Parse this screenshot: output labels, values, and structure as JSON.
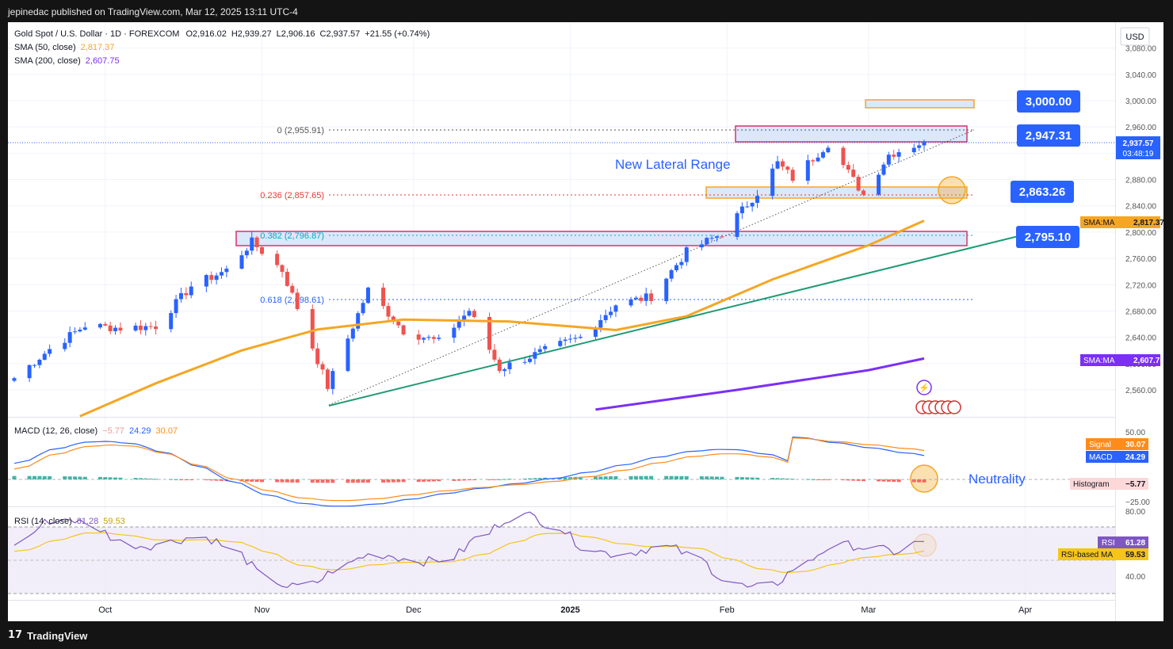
{
  "header": {
    "published_text": "jepinedac published on TradingView.com, Mar 12, 2025 13:11 UTC-4"
  },
  "legend": {
    "symbol": "Gold Spot / U.S. Dollar · 1D · FOREXCOM",
    "open": "O2,916.02",
    "high": "H2,939.27",
    "low": "L2,906.16",
    "close": "C2,937.57",
    "change": "+21.55 (+0.74%)",
    "sma50_label": "SMA (50, close)",
    "sma50_value": "2,817.37",
    "sma200_label": "SMA (200, close)",
    "sma200_value": "2,607.75"
  },
  "currency": "USD",
  "price_axis": {
    "ticks": [
      "3,080.00",
      "3,040.00",
      "3,000.00",
      "2,960.00",
      "2,920.00",
      "2,880.00",
      "2,840.00",
      "2,800.00",
      "2,760.00",
      "2,720.00",
      "2,680.00",
      "2,640.00",
      "2,600.00",
      "2,560.00"
    ],
    "current_price": "2,937.57",
    "countdown": "03:48:19",
    "sma50_tag_label": "SMA:MA",
    "sma50_tag_value": "2,817.37",
    "sma200_tag_label": "SMA:MA",
    "sma200_tag_value": "2,607.75"
  },
  "annotations": {
    "level_3000": "3,000.00",
    "level_2947": "2,947.31",
    "level_2863": "2,863.26",
    "level_2795": "2,795.10",
    "range_text": "New Lateral Range",
    "fib_0": "0 (2,955.91)",
    "fib_236": "0.236 (2,857.65)",
    "fib_382": "0.382 (2,796.87)",
    "fib_618": "0.618 (2,698.61)",
    "neutrality": "Neutrality"
  },
  "macd": {
    "label": "MACD (12, 26, close)",
    "hist": "−5.77",
    "macd_value": "24.29",
    "signal_value": "30.07",
    "axis_ticks": [
      "50.00",
      "−25.00"
    ],
    "signal_tag_label": "Signal",
    "signal_tag_value": "30.07",
    "macd_tag_label": "MACD",
    "macd_tag_value": "24.29",
    "hist_tag_label": "Histogram",
    "hist_tag_value": "−5.77"
  },
  "rsi": {
    "label": "RSI (14, close)",
    "value": "61.28",
    "ma_value": "59.53",
    "axis_ticks": [
      "80.00",
      "40.00"
    ],
    "rsi_tag_label": "RSI",
    "rsi_tag_value": "61.28",
    "ma_tag_label": "RSI-based MA",
    "ma_tag_value": "59.53"
  },
  "time_axis": {
    "labels": [
      "Oct",
      "Nov",
      "Dec",
      "2025",
      "Feb",
      "Mar",
      "Apr"
    ]
  },
  "footer": {
    "brand": "TradingView"
  },
  "colors": {
    "up": "#2962ff",
    "down": "#ef5350",
    "sma50": "#f5a623",
    "sma200": "#7b2ff7",
    "trendline": "#1e9b74",
    "macd_line": "#2962ff",
    "signal_line": "#ff8c1a",
    "rsi_line": "#7e57c2",
    "rsi_ma": "#f5c518",
    "badge": "#2962ff"
  },
  "chart_data": {
    "type": "candlestick",
    "title": "Gold Spot / U.S. Dollar · 1D · FOREXCOM",
    "x_range": [
      "2024-09-13",
      "2025-03-12"
    ],
    "ylim": [
      2530,
      3090
    ],
    "close_path": [
      {
        "date": "2024-09-13",
        "close": 2578
      },
      {
        "date": "2024-09-20",
        "close": 2622
      },
      {
        "date": "2024-09-27",
        "close": 2658
      },
      {
        "date": "2024-10-04",
        "close": 2654
      },
      {
        "date": "2024-10-11",
        "close": 2657
      },
      {
        "date": "2024-10-18",
        "close": 2718
      },
      {
        "date": "2024-10-25",
        "close": 2742
      },
      {
        "date": "2024-10-30",
        "close": 2785
      },
      {
        "date": "2024-11-05",
        "close": 2742
      },
      {
        "date": "2024-11-08",
        "close": 2685
      },
      {
        "date": "2024-11-14",
        "close": 2565
      },
      {
        "date": "2024-11-22",
        "close": 2712
      },
      {
        "date": "2024-11-29",
        "close": 2650
      },
      {
        "date": "2024-12-06",
        "close": 2633
      },
      {
        "date": "2024-12-12",
        "close": 2681
      },
      {
        "date": "2024-12-18",
        "close": 2592
      },
      {
        "date": "2024-12-27",
        "close": 2620
      },
      {
        "date": "2025-01-03",
        "close": 2640
      },
      {
        "date": "2025-01-10",
        "close": 2690
      },
      {
        "date": "2025-01-17",
        "close": 2702
      },
      {
        "date": "2025-01-24",
        "close": 2770
      },
      {
        "date": "2025-01-31",
        "close": 2798
      },
      {
        "date": "2025-02-07",
        "close": 2860
      },
      {
        "date": "2025-02-11",
        "close": 2905
      },
      {
        "date": "2025-02-14",
        "close": 2882
      },
      {
        "date": "2025-02-21",
        "close": 2935
      },
      {
        "date": "2025-02-28",
        "close": 2857
      },
      {
        "date": "2025-03-05",
        "close": 2918
      },
      {
        "date": "2025-03-12",
        "close": 2937.57
      }
    ],
    "sma50_path": [
      {
        "date": "2024-09-26",
        "value": 2520
      },
      {
        "date": "2024-10-11",
        "value": 2570
      },
      {
        "date": "2024-10-28",
        "value": 2620
      },
      {
        "date": "2024-11-12",
        "value": 2652
      },
      {
        "date": "2024-11-29",
        "value": 2667
      },
      {
        "date": "2024-12-20",
        "value": 2664
      },
      {
        "date": "2025-01-10",
        "value": 2651
      },
      {
        "date": "2025-01-24",
        "value": 2672
      },
      {
        "date": "2025-02-10",
        "value": 2728
      },
      {
        "date": "2025-03-01",
        "value": 2780
      },
      {
        "date": "2025-03-12",
        "value": 2817.37
      }
    ],
    "sma200_path": [
      {
        "date": "2025-01-06",
        "value": 2530
      },
      {
        "date": "2025-02-03",
        "value": 2560
      },
      {
        "date": "2025-03-01",
        "value": 2590
      },
      {
        "date": "2025-03-12",
        "value": 2607.75
      }
    ],
    "fibonacci": [
      {
        "level": "0",
        "value": 2955.91
      },
      {
        "level": "0.236",
        "value": 2857.65
      },
      {
        "level": "0.382",
        "value": 2796.87
      },
      {
        "level": "0.618",
        "value": 2698.61
      }
    ],
    "support_resistance": [
      3000.0,
      2947.31,
      2863.26,
      2795.1
    ],
    "macd": {
      "histogram": -5.77,
      "macd": 24.29,
      "signal": 30.07
    },
    "rsi": {
      "rsi": 61.28,
      "rsi_ma": 59.53,
      "bands": [
        70,
        50,
        30
      ]
    }
  }
}
